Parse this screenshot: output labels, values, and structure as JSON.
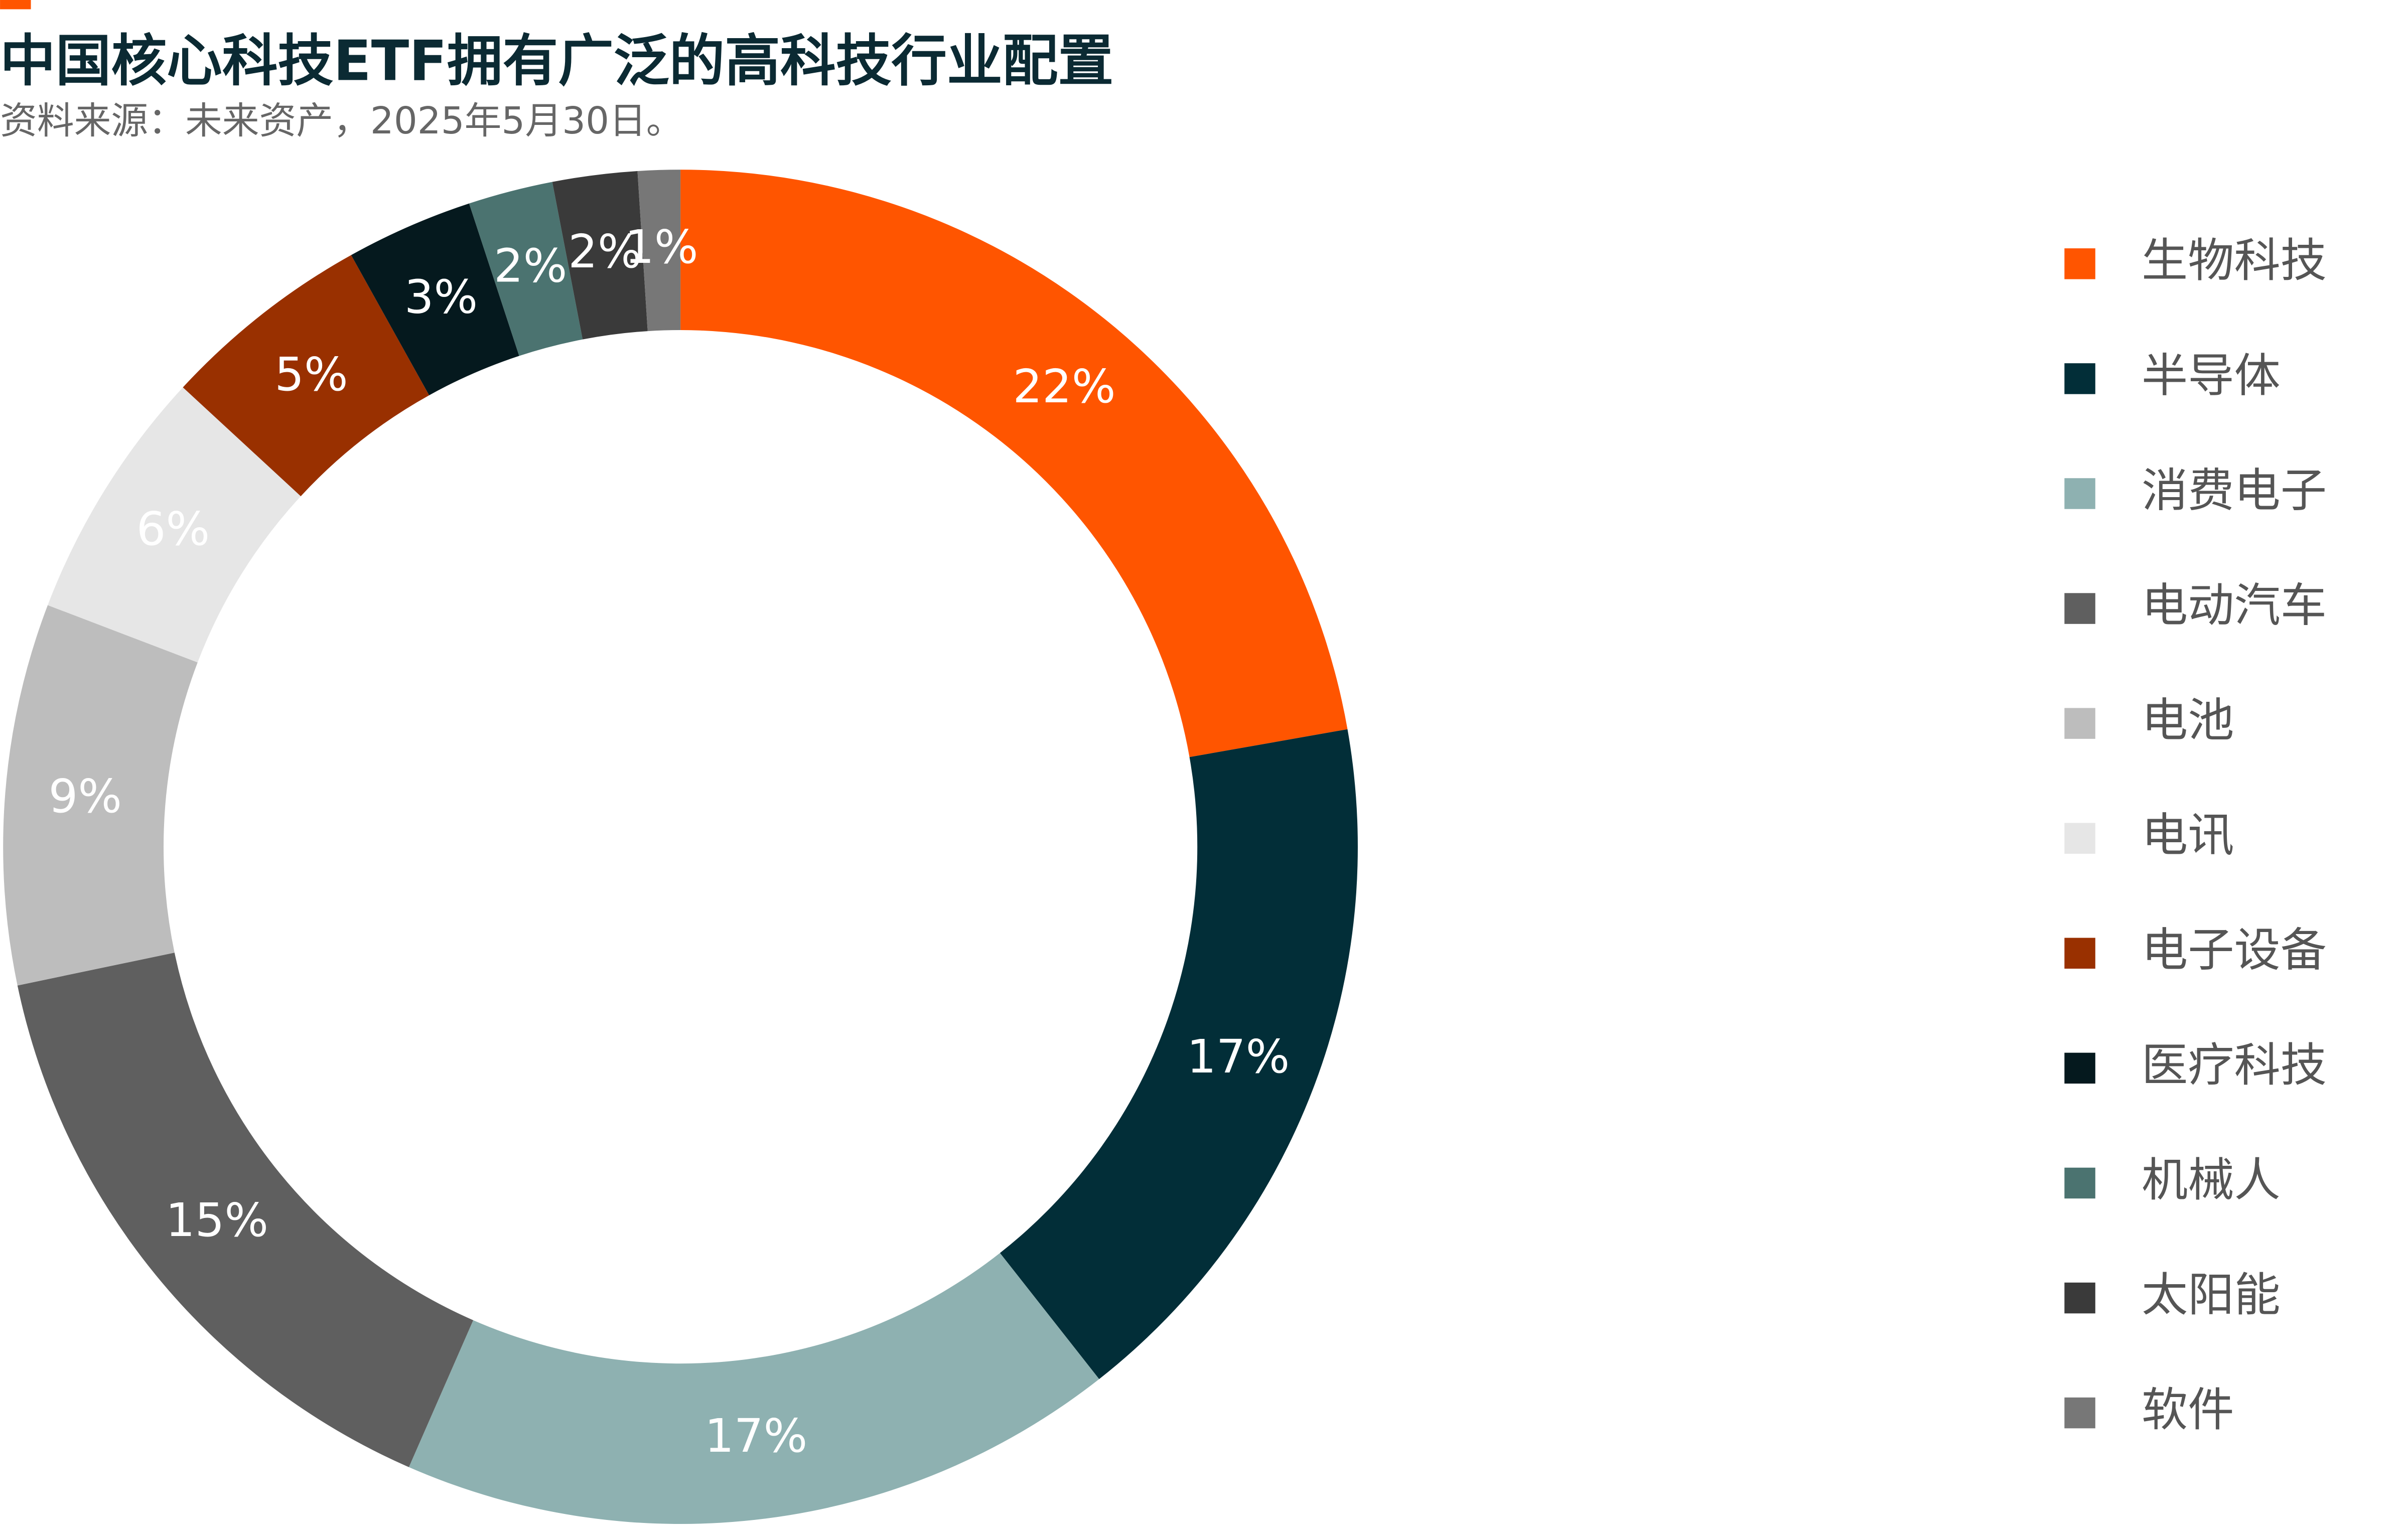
{
  "chart_data": {
    "type": "donut",
    "title": "中国核心科技ETF拥有广泛的高科技行业配置",
    "subtitle": "资料来源：未来资产，2025年5月30日。",
    "categories": [
      "生物科技",
      "半导体",
      "消费电子",
      "电动汽车",
      "电池",
      "电讯",
      "电子设备",
      "医疗科技",
      "机械人",
      "太阳能",
      "软件"
    ],
    "values": [
      22,
      17,
      17,
      15,
      9,
      6,
      5,
      3,
      2,
      2,
      1
    ],
    "value_labels": [
      "22%",
      "17%",
      "17%",
      "15%",
      "9%",
      "6%",
      "5%",
      "3%",
      "2%",
      "2%",
      "1%"
    ],
    "colors": [
      "#ff5500",
      "#022e38",
      "#8eb1b1",
      "#5f5f5f",
      "#bdbdbd",
      "#e6e6e6",
      "#993000",
      "#05191e",
      "#4b7370",
      "#3a3a3a",
      "#777777"
    ],
    "legend": "right"
  }
}
